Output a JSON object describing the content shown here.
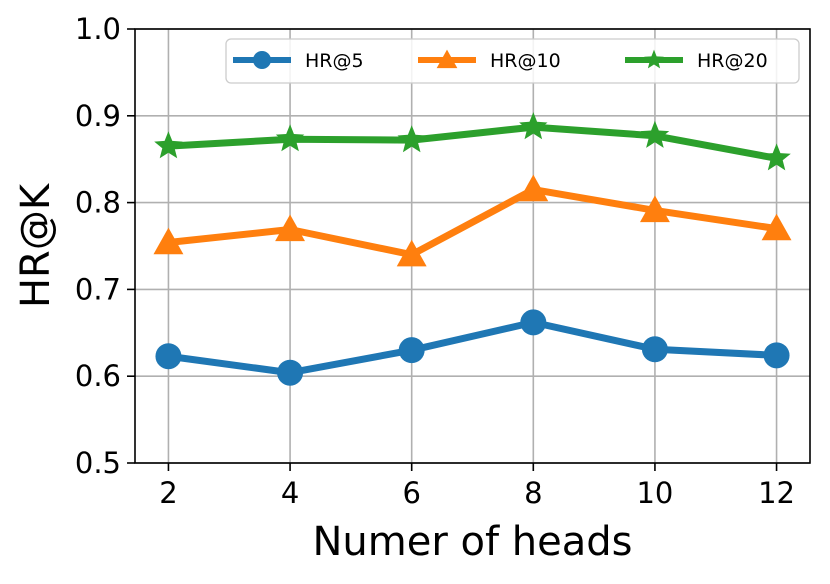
{
  "chart_data": {
    "type": "line",
    "title": "",
    "xlabel": "Numer of heads",
    "ylabel": "HR@K",
    "x": [
      2,
      4,
      6,
      8,
      10,
      12
    ],
    "xticks": [
      "2",
      "4",
      "6",
      "8",
      "10",
      "12"
    ],
    "yticks": [
      "0.5",
      "0.6",
      "0.7",
      "0.8",
      "0.9",
      "1.0"
    ],
    "xlim": [
      1.45,
      12.55
    ],
    "ylim": [
      0.5,
      1.0
    ],
    "grid": true,
    "legend_position": "top-right",
    "series": [
      {
        "name": "HR@5",
        "values": [
          0.623,
          0.604,
          0.63,
          0.662,
          0.631,
          0.624
        ],
        "color": "#1f77b4",
        "marker": "circle"
      },
      {
        "name": "HR@10",
        "values": [
          0.754,
          0.769,
          0.74,
          0.815,
          0.791,
          0.77
        ],
        "color": "#ff7f0e",
        "marker": "triangle"
      },
      {
        "name": "HR@20",
        "values": [
          0.865,
          0.873,
          0.872,
          0.887,
          0.877,
          0.851
        ],
        "color": "#2ca02c",
        "marker": "star"
      }
    ]
  }
}
